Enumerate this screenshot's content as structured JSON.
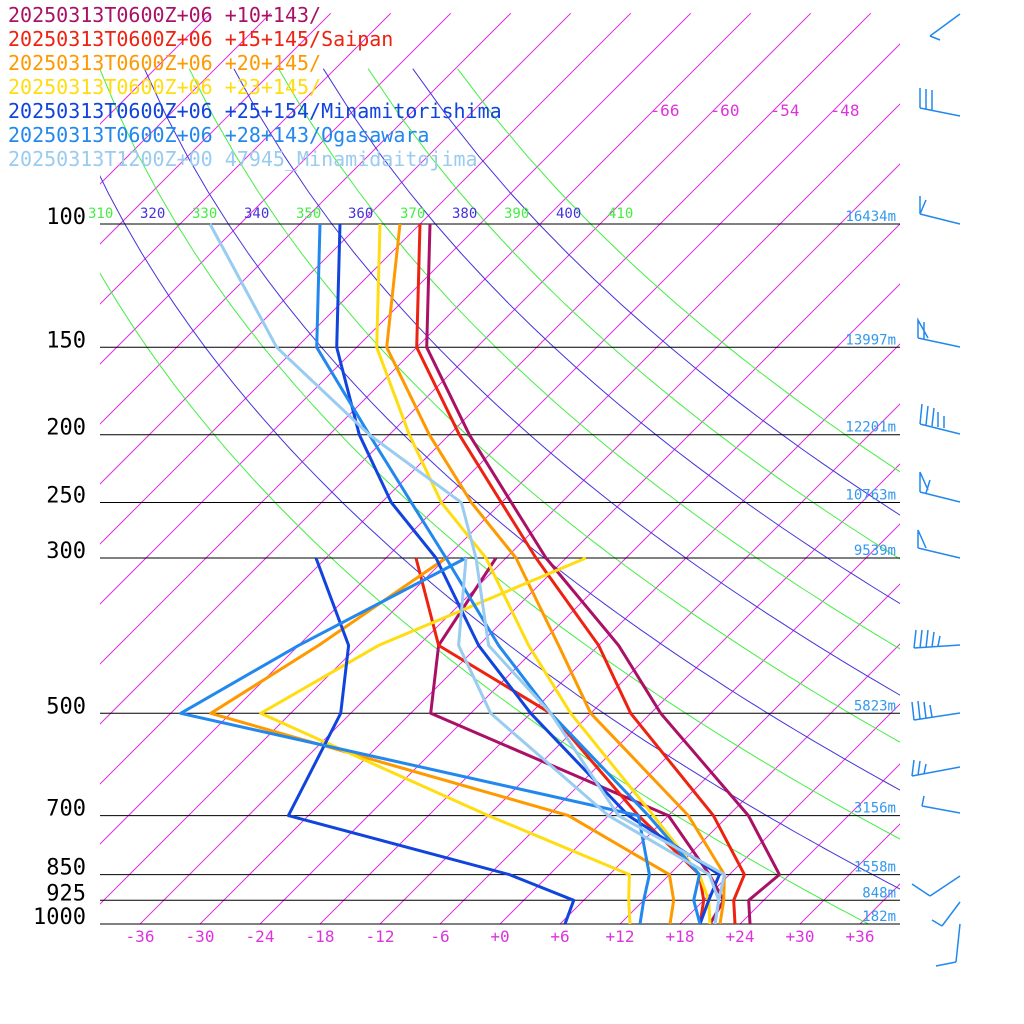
{
  "chart_data": {
    "type": "line",
    "subtype": "skew-T log-P sounding",
    "pressure_levels": [
      100,
      150,
      200,
      250,
      300,
      500,
      700,
      850,
      925,
      1000
    ],
    "height_labels": [
      {
        "p": 100,
        "text": "16434m"
      },
      {
        "p": 150,
        "text": "13997m"
      },
      {
        "p": 200,
        "text": "12201m"
      },
      {
        "p": 250,
        "text": "10763m"
      },
      {
        "p": 300,
        "text": "9539m"
      },
      {
        "p": 500,
        "text": "5823m"
      },
      {
        "p": 700,
        "text": "3156m"
      },
      {
        "p": 850,
        "text": "1558m"
      },
      {
        "p": 925,
        "text": "848m"
      },
      {
        "p": 1000,
        "text": "182m"
      }
    ],
    "x_ticks": [
      "-36",
      "-30",
      "-24",
      "-18",
      "-12",
      "-6",
      "+0",
      "+6",
      "+12",
      "+18",
      "+24",
      "+30",
      "+36"
    ],
    "x_tick_values": [
      -36,
      -30,
      -24,
      -18,
      -12,
      -6,
      0,
      6,
      12,
      18,
      24,
      30,
      36
    ],
    "upper_ticks": [
      "-66",
      "-60",
      "-54",
      "-48"
    ],
    "upper_tick_values": [
      -66,
      -60,
      -54,
      -48
    ],
    "theta_labels": [
      "310",
      "320",
      "330",
      "340",
      "350",
      "360",
      "370",
      "380",
      "390",
      "400",
      "410"
    ],
    "theta_values": [
      310,
      320,
      330,
      340,
      350,
      360,
      370,
      380,
      390,
      400,
      410
    ],
    "temperature_range": [
      -40,
      40
    ],
    "pressure_range": [
      100,
      1000
    ],
    "series": [
      {
        "name": "20250313T0600Z+06 +10+143/",
        "color": "#aa1166",
        "temp": [
          [
            1000,
            25
          ],
          [
            925,
            22.5
          ],
          [
            850,
            23
          ],
          [
            700,
            14
          ],
          [
            500,
            -5
          ],
          [
            400,
            -16
          ],
          [
            300,
            -32
          ],
          [
            250,
            -41
          ],
          [
            200,
            -52
          ],
          [
            150,
            -65
          ],
          [
            100,
            -77
          ]
        ],
        "dew": [
          [
            1000,
            21
          ],
          [
            925,
            20
          ],
          [
            850,
            16
          ],
          [
            700,
            6
          ],
          [
            500,
            -28
          ],
          [
            400,
            -34
          ],
          [
            300,
            -37
          ]
        ]
      },
      {
        "name": "20250313T0600Z+06 +15+145/Saipan",
        "color": "#ee2211",
        "temp": [
          [
            1000,
            23.5
          ],
          [
            925,
            21
          ],
          [
            850,
            19.5
          ],
          [
            700,
            10.5
          ],
          [
            500,
            -8
          ],
          [
            400,
            -18
          ],
          [
            300,
            -33
          ],
          [
            250,
            -42
          ],
          [
            200,
            -53
          ],
          [
            150,
            -66
          ],
          [
            100,
            -78
          ]
        ],
        "dew": [
          [
            1000,
            20
          ],
          [
            925,
            18
          ],
          [
            850,
            15
          ],
          [
            700,
            3
          ],
          [
            500,
            -16
          ],
          [
            400,
            -34
          ],
          [
            300,
            -45
          ]
        ]
      },
      {
        "name": "20250313T0600Z+06 +20+145/",
        "color": "#ff9900",
        "temp": [
          [
            1000,
            22
          ],
          [
            925,
            20
          ],
          [
            850,
            17.5
          ],
          [
            700,
            8
          ],
          [
            500,
            -12
          ],
          [
            400,
            -22
          ],
          [
            300,
            -35
          ],
          [
            250,
            -45
          ],
          [
            200,
            -56
          ],
          [
            150,
            -69
          ],
          [
            100,
            -80
          ]
        ],
        "dew": [
          [
            1000,
            17
          ],
          [
            925,
            15
          ],
          [
            850,
            12
          ],
          [
            700,
            -4
          ],
          [
            500,
            -50
          ],
          [
            400,
            -46
          ],
          [
            300,
            -42
          ]
        ]
      },
      {
        "name": "20250313T0600Z+06 +23+145/",
        "color": "#ffdd11",
        "temp": [
          [
            1000,
            21
          ],
          [
            925,
            18.5
          ],
          [
            850,
            15
          ],
          [
            700,
            4.5
          ],
          [
            500,
            -14
          ],
          [
            400,
            -25
          ],
          [
            300,
            -38
          ],
          [
            250,
            -48
          ],
          [
            200,
            -58
          ],
          [
            150,
            -70
          ],
          [
            100,
            -82
          ]
        ],
        "dew": [
          [
            1000,
            13
          ],
          [
            925,
            10.5
          ],
          [
            850,
            8
          ],
          [
            700,
            -12
          ],
          [
            500,
            -45
          ],
          [
            400,
            -40
          ],
          [
            300,
            -28
          ]
        ]
      },
      {
        "name": "20250313T0600Z+06 +25+154/Minamitorishima",
        "color": "#1144dd",
        "temp": [
          [
            1000,
            20
          ],
          [
            925,
            18.5
          ],
          [
            850,
            17
          ],
          [
            700,
            2
          ],
          [
            500,
            -18
          ],
          [
            400,
            -30
          ],
          [
            300,
            -43
          ],
          [
            250,
            -53
          ],
          [
            200,
            -63
          ],
          [
            150,
            -74
          ],
          [
            100,
            -86
          ]
        ],
        "dew": [
          [
            1000,
            6.5
          ],
          [
            925,
            5
          ],
          [
            850,
            -4
          ],
          [
            700,
            -32
          ],
          [
            500,
            -37
          ],
          [
            400,
            -43
          ],
          [
            300,
            -55
          ]
        ]
      },
      {
        "name": "20250313T0600Z+06 +28+143/Ogasawara",
        "color": "#2288ee",
        "temp": [
          [
            1000,
            20
          ],
          [
            925,
            17
          ],
          [
            850,
            15
          ],
          [
            700,
            4
          ],
          [
            500,
            -16
          ],
          [
            400,
            -28
          ],
          [
            300,
            -42
          ],
          [
            250,
            -51
          ],
          [
            200,
            -62
          ],
          [
            150,
            -76
          ],
          [
            100,
            -88
          ]
        ],
        "dew": [
          [
            1000,
            14
          ],
          [
            925,
            12
          ],
          [
            850,
            10
          ],
          [
            700,
            3
          ],
          [
            500,
            -53
          ],
          [
            400,
            -48
          ],
          [
            300,
            -40
          ]
        ]
      },
      {
        "name": "20250313T1200Z+00 47945_Minamidaitojima",
        "color": "#99ccf0",
        "temp": [
          [
            1000,
            21.5
          ],
          [
            925,
            19.5
          ],
          [
            850,
            17.5
          ],
          [
            700,
            1
          ],
          [
            500,
            -16
          ],
          [
            400,
            -29
          ],
          [
            300,
            -39
          ],
          [
            250,
            -46
          ],
          [
            200,
            -62
          ],
          [
            150,
            -80
          ],
          [
            100,
            -99
          ]
        ],
        "dew": [
          [
            1000,
            21.5
          ],
          [
            925,
            19.5
          ],
          [
            850,
            16
          ],
          [
            700,
            0
          ],
          [
            500,
            -22
          ],
          [
            400,
            -32
          ],
          [
            300,
            -40
          ]
        ]
      }
    ]
  }
}
